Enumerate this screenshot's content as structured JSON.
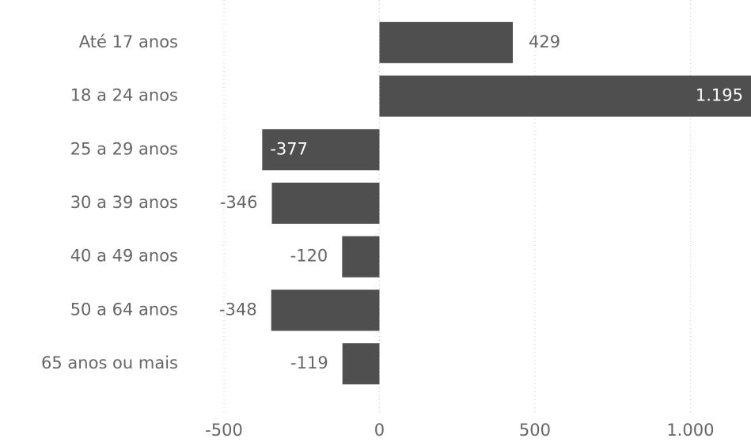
{
  "chart_data": {
    "type": "bar",
    "orientation": "horizontal",
    "categories": [
      "Até 17 anos",
      "18 a 24 anos",
      "25 a 29 anos",
      "30 a 39 anos",
      "40 a 49 anos",
      "50 a 64 anos",
      "65 anos ou mais"
    ],
    "values": [
      429,
      1195,
      -377,
      -346,
      -120,
      -348,
      -119
    ],
    "value_labels": [
      "429",
      "1.195",
      "-377",
      "-346",
      "-120",
      "-348",
      "-119"
    ],
    "color": "#4f4f4f",
    "xlim": [
      -500,
      1195
    ],
    "xticks": [
      -500,
      0,
      500,
      {
        "value": 1000,
        "label": "1.000"
      }
    ],
    "grid": true
  }
}
